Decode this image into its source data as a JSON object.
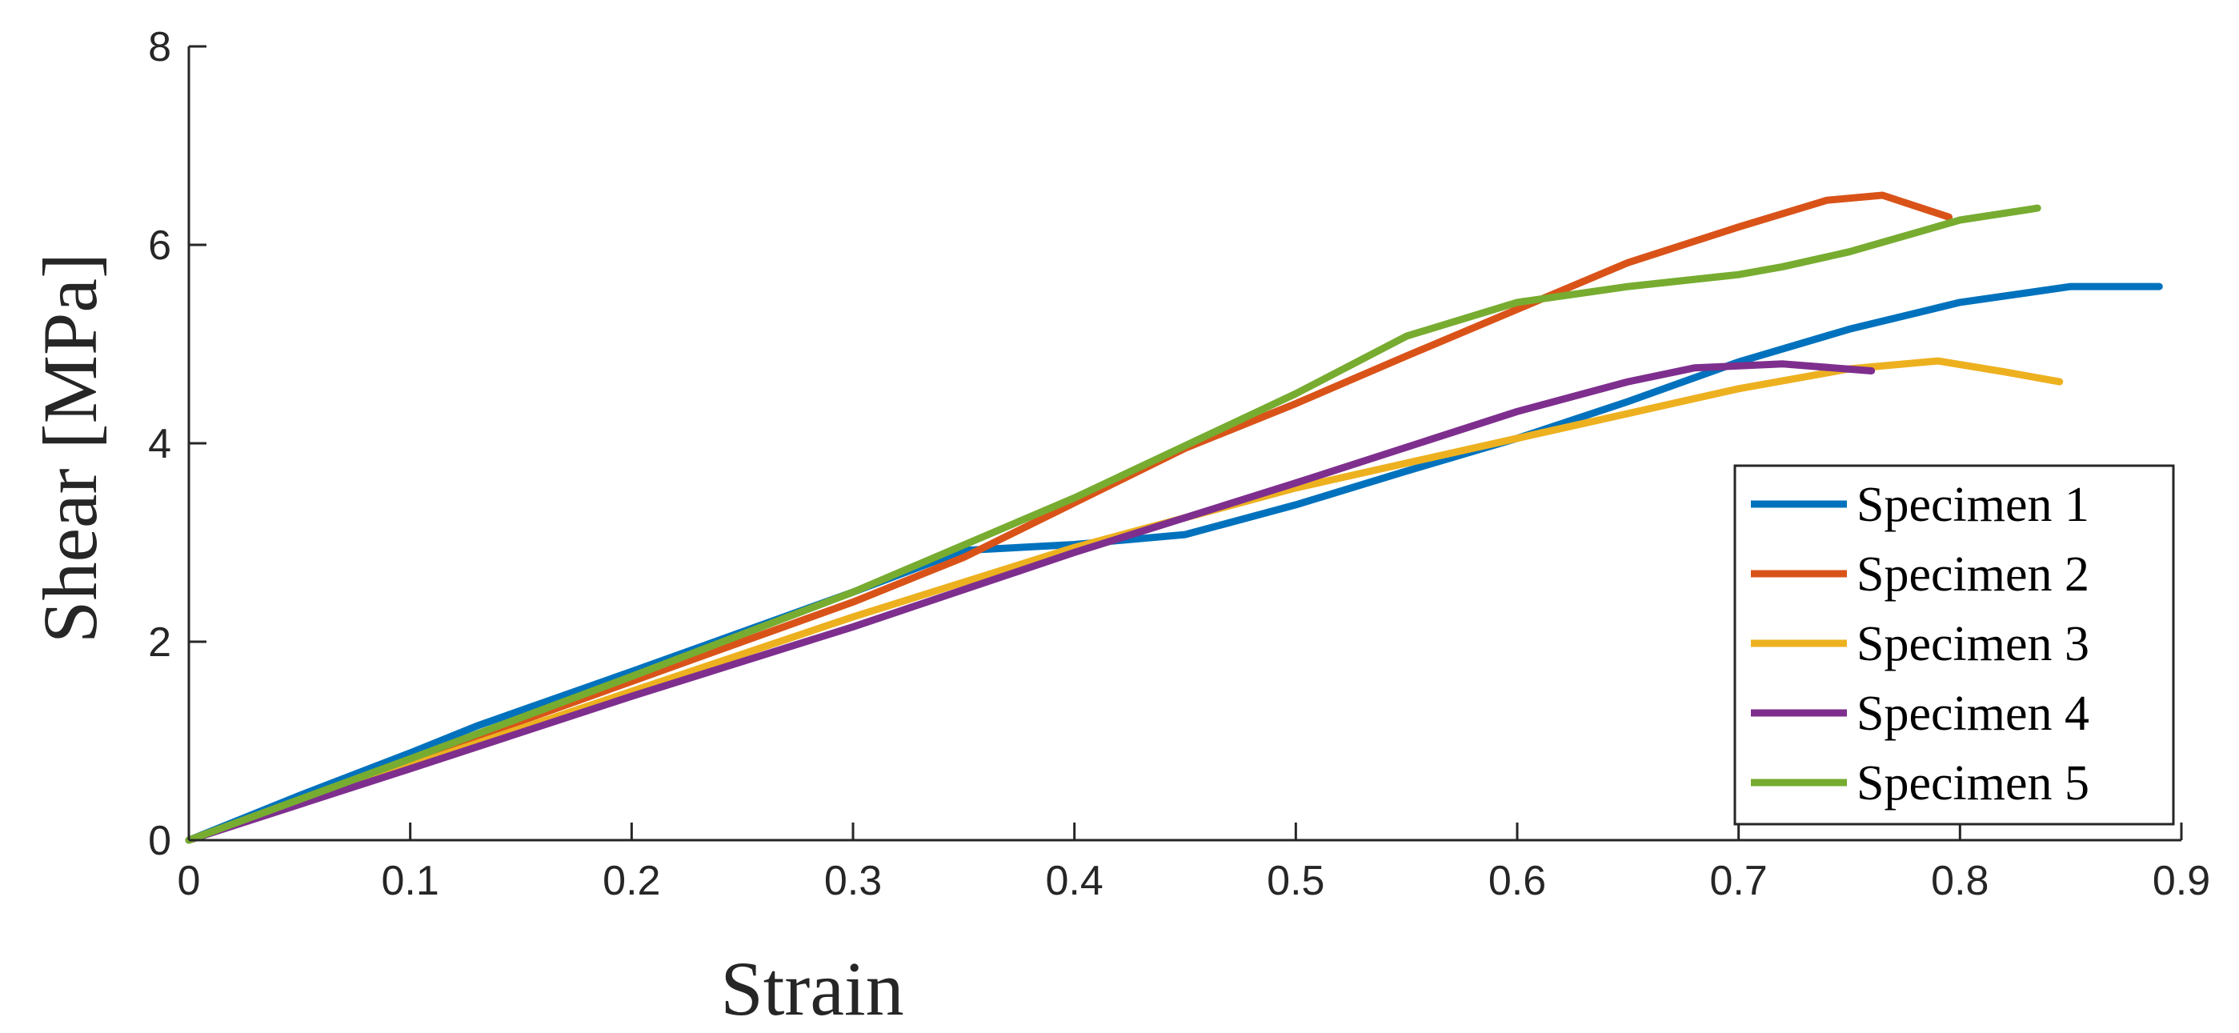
{
  "chart_data": {
    "type": "line",
    "title": "",
    "xlabel": "Strain",
    "ylabel": "Shear [MPa]",
    "xlim": [
      0,
      0.9
    ],
    "ylim": [
      0,
      8
    ],
    "xticks": [
      0,
      0.1,
      0.2,
      0.3,
      0.4,
      0.5,
      0.6,
      0.7,
      0.8,
      0.9
    ],
    "xtick_labels": [
      "0",
      "0.1",
      "0.2",
      "0.3",
      "0.4",
      "0.5",
      "0.6",
      "0.7",
      "0.8",
      "0.9"
    ],
    "yticks": [
      0,
      2,
      4,
      6,
      8
    ],
    "ytick_labels": [
      "0",
      "2",
      "4",
      "6",
      "8"
    ],
    "grid": false,
    "legend_position": "lower-right",
    "series": [
      {
        "name": "Specimen 1",
        "color": "#0072BD",
        "x": [
          0,
          0.05,
          0.1,
          0.13,
          0.2,
          0.25,
          0.3,
          0.35,
          0.4,
          0.45,
          0.5,
          0.55,
          0.6,
          0.65,
          0.7,
          0.75,
          0.8,
          0.85,
          0.89
        ],
        "y": [
          0,
          0.45,
          0.88,
          1.15,
          1.7,
          2.1,
          2.5,
          2.92,
          2.98,
          3.08,
          3.38,
          3.72,
          4.05,
          4.42,
          4.82,
          5.15,
          5.42,
          5.58,
          5.58
        ]
      },
      {
        "name": "Specimen 2",
        "color": "#D95319",
        "x": [
          0,
          0.1,
          0.2,
          0.3,
          0.35,
          0.4,
          0.45,
          0.5,
          0.55,
          0.6,
          0.65,
          0.7,
          0.74,
          0.765,
          0.795
        ],
        "y": [
          0,
          0.8,
          1.6,
          2.4,
          2.85,
          3.4,
          3.95,
          4.4,
          4.88,
          5.35,
          5.82,
          6.18,
          6.45,
          6.5,
          6.28
        ]
      },
      {
        "name": "Specimen 3",
        "color": "#EDB120",
        "x": [
          0,
          0.1,
          0.2,
          0.3,
          0.4,
          0.5,
          0.6,
          0.7,
          0.75,
          0.79,
          0.82,
          0.845
        ],
        "y": [
          0,
          0.75,
          1.5,
          2.25,
          2.95,
          3.55,
          4.05,
          4.55,
          4.75,
          4.83,
          4.72,
          4.62
        ]
      },
      {
        "name": "Specimen 4",
        "color": "#7E2F8E",
        "x": [
          0,
          0.1,
          0.2,
          0.3,
          0.4,
          0.5,
          0.6,
          0.65,
          0.68,
          0.72,
          0.76
        ],
        "y": [
          0,
          0.72,
          1.45,
          2.15,
          2.9,
          3.6,
          4.32,
          4.62,
          4.76,
          4.8,
          4.73
        ]
      },
      {
        "name": "Specimen 5",
        "color": "#77AC30",
        "x": [
          0,
          0.1,
          0.2,
          0.3,
          0.4,
          0.5,
          0.55,
          0.6,
          0.65,
          0.7,
          0.72,
          0.75,
          0.8,
          0.835
        ],
        "y": [
          0,
          0.82,
          1.65,
          2.5,
          3.45,
          4.5,
          5.08,
          5.42,
          5.58,
          5.7,
          5.78,
          5.93,
          6.25,
          6.37
        ]
      }
    ]
  }
}
